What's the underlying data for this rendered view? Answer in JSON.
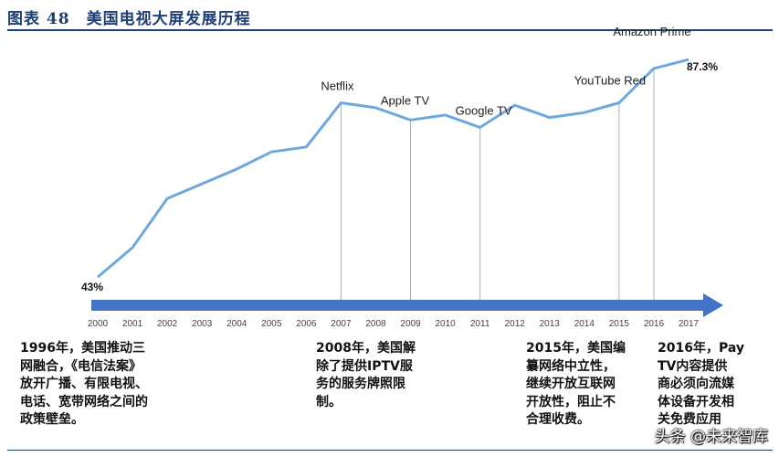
{
  "figure_title": "图表 48　美国电视大屏发展历程",
  "chart_data": {
    "type": "line",
    "x": [
      2000,
      2001,
      2002,
      2003,
      2004,
      2005,
      2006,
      2007,
      2008,
      2009,
      2010,
      2011,
      2012,
      2013,
      2014,
      2015,
      2016,
      2017
    ],
    "series": [
      {
        "values": [
          43,
          49,
          59,
          62,
          65,
          68.5,
          69.5,
          78.5,
          77.5,
          75,
          76,
          73.5,
          78,
          75.5,
          76.5,
          78.5,
          85.5,
          87.3
        ]
      }
    ],
    "xlim": [
      2000,
      2017
    ],
    "ylim": [
      38,
      92
    ],
    "grid": false,
    "annotations": [
      {
        "label": "Netflix",
        "x": 2007,
        "y": 78.5
      },
      {
        "label": "Apple TV",
        "x": 2009,
        "y": 75
      },
      {
        "label": "Google TV",
        "x": 2011,
        "y": 73.5
      },
      {
        "label": "YouTube Red",
        "x": 2015,
        "y": 78.5
      },
      {
        "label": "Amazon Prime",
        "x": 2016,
        "y": 85.5
      }
    ],
    "start_label": "43%",
    "end_label": "87.3%",
    "colors": {
      "line": "#6fa8dc",
      "arrow": "#4472c4",
      "marker_line": "#9fb3cf"
    }
  },
  "notes": [
    {
      "text": "1996年，美国推动三\n网融合，《电信法案》\n放开广播、有限电视、\n电话、宽带网络之间的\n政策壁垒。"
    },
    {
      "text": "2008年，美国解\n除了提供IPTV服\n务的服务牌照限\n制。"
    },
    {
      "text": "2015年，美国编\n纂网络中立性，\n继续开放互联网\n开放性，阻止不\n合理收费。"
    },
    {
      "text": "2016年，Pay\nTV内容提供\n商必须向流媒\n体设备开发相\n关免费应用"
    }
  ],
  "watermark": "头条 @未来智库"
}
